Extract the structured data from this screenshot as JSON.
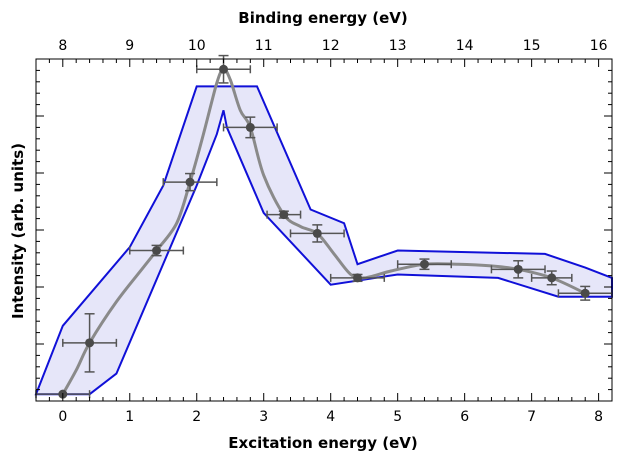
{
  "chart_data": {
    "type": "scatter",
    "xlabel": "Excitation energy (eV)",
    "x2label": "Binding energy (eV)",
    "ylabel": "Intensity (arb. units)",
    "xlim": [
      -0.4,
      8.2
    ],
    "x2lim": [
      7.6,
      16.2
    ],
    "ylim": [
      0,
      1
    ],
    "x_ticks": [
      0,
      1,
      2,
      3,
      4,
      5,
      6,
      7,
      8
    ],
    "x2_ticks": [
      8,
      9,
      10,
      11,
      12,
      13,
      14,
      15,
      16
    ],
    "y_tick_labels": "none",
    "grid": false,
    "points": [
      {
        "x": 0.0,
        "y": 0.02,
        "xerr": 0.4,
        "yerr": 0.0
      },
      {
        "x": 0.4,
        "y": 0.17,
        "xerr": 0.4,
        "yerr": 0.085
      },
      {
        "x": 1.4,
        "y": 0.44,
        "xerr": 0.4,
        "yerr": 0.015
      },
      {
        "x": 1.9,
        "y": 0.64,
        "xerr": 0.4,
        "yerr": 0.025
      },
      {
        "x": 2.4,
        "y": 0.97,
        "xerr": 0.4,
        "yerr": 0.04
      },
      {
        "x": 2.8,
        "y": 0.8,
        "xerr": 0.4,
        "yerr": 0.03
      },
      {
        "x": 3.3,
        "y": 0.545,
        "xerr": 0.25,
        "yerr": 0.01
      },
      {
        "x": 3.8,
        "y": 0.49,
        "xerr": 0.4,
        "yerr": 0.025
      },
      {
        "x": 4.4,
        "y": 0.36,
        "xerr": 0.4,
        "yerr": 0.01
      },
      {
        "x": 5.4,
        "y": 0.4,
        "xerr": 0.4,
        "yerr": 0.015
      },
      {
        "x": 6.8,
        "y": 0.385,
        "xerr": 0.4,
        "yerr": 0.025
      },
      {
        "x": 7.3,
        "y": 0.36,
        "xerr": 0.3,
        "yerr": 0.02
      },
      {
        "x": 7.8,
        "y": 0.315,
        "xerr": 0.4,
        "yerr": 0.02
      }
    ],
    "smooth_curve": {
      "x": [
        0.0,
        0.2,
        0.4,
        0.8,
        1.2,
        1.4,
        1.7,
        1.9,
        2.1,
        2.3,
        2.4,
        2.5,
        2.65,
        2.8,
        3.0,
        3.3,
        3.55,
        3.8,
        4.05,
        4.3,
        4.5,
        4.9,
        5.4,
        5.9,
        6.4,
        6.8,
        7.3,
        7.8
      ],
      "y": [
        0.02,
        0.09,
        0.17,
        0.29,
        0.39,
        0.44,
        0.52,
        0.64,
        0.78,
        0.93,
        0.97,
        0.94,
        0.85,
        0.8,
        0.66,
        0.545,
        0.51,
        0.49,
        0.43,
        0.37,
        0.36,
        0.38,
        0.4,
        0.4,
        0.395,
        0.385,
        0.36,
        0.315
      ]
    },
    "band": {
      "upper": [
        [
          -0.4,
          0.02
        ],
        [
          0.0,
          0.22
        ],
        [
          1.0,
          0.45
        ],
        [
          1.5,
          0.63
        ],
        [
          2.0,
          0.92
        ],
        [
          2.9,
          0.92
        ],
        [
          3.7,
          0.56
        ],
        [
          4.2,
          0.52
        ],
        [
          4.4,
          0.4
        ],
        [
          5.0,
          0.44
        ],
        [
          7.2,
          0.43
        ],
        [
          7.8,
          0.39
        ],
        [
          8.2,
          0.36
        ]
      ],
      "lower": [
        [
          8.2,
          0.305
        ],
        [
          7.4,
          0.305
        ],
        [
          6.5,
          0.36
        ],
        [
          5.0,
          0.37
        ],
        [
          4.0,
          0.34
        ],
        [
          3.0,
          0.55
        ],
        [
          2.45,
          0.8
        ],
        [
          2.4,
          0.85
        ],
        [
          2.3,
          0.78
        ],
        [
          2.0,
          0.63
        ],
        [
          0.8,
          0.08
        ],
        [
          0.4,
          0.02
        ]
      ]
    },
    "colors": {
      "band_fill": "#e2e2f8",
      "band_edge": "#1010d8",
      "curve": "#8a8a8a",
      "marker": "#4a4a4a",
      "errorbar": "#555555"
    }
  }
}
